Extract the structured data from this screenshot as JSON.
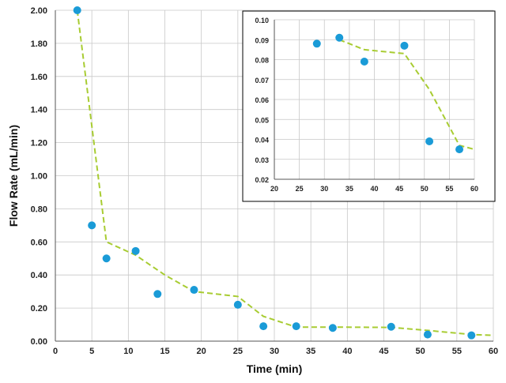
{
  "chart_data": [
    {
      "id": "main",
      "type": "scatter",
      "title": "",
      "xlabel": "Time (min)",
      "ylabel": "Flow Rate (mL/min)",
      "xlim": [
        0,
        60
      ],
      "ylim": [
        0,
        2.0
      ],
      "x_ticks": [
        "0",
        "5",
        "10",
        "15",
        "20",
        "25",
        "30",
        "35",
        "40",
        "45",
        "50",
        "55",
        "60"
      ],
      "y_ticks": [
        "0.00",
        "0.20",
        "0.40",
        "0.60",
        "0.80",
        "1.00",
        "1.20",
        "1.40",
        "1.60",
        "1.80",
        "2.00"
      ],
      "grid": true,
      "legend": "none",
      "points": [
        {
          "x": 3,
          "y": 2.0
        },
        {
          "x": 5,
          "y": 0.7
        },
        {
          "x": 7,
          "y": 0.5
        },
        {
          "x": 11,
          "y": 0.545
        },
        {
          "x": 14,
          "y": 0.285
        },
        {
          "x": 19,
          "y": 0.31
        },
        {
          "x": 25,
          "y": 0.22
        },
        {
          "x": 28.5,
          "y": 0.09
        },
        {
          "x": 33,
          "y": 0.09
        },
        {
          "x": 38,
          "y": 0.08
        },
        {
          "x": 46,
          "y": 0.087
        },
        {
          "x": 51,
          "y": 0.04
        },
        {
          "x": 57,
          "y": 0.035
        }
      ],
      "trend_line": [
        {
          "x": 3,
          "y": 2.0
        },
        {
          "x": 7,
          "y": 0.6
        },
        {
          "x": 11,
          "y": 0.52
        },
        {
          "x": 15,
          "y": 0.4
        },
        {
          "x": 19,
          "y": 0.3
        },
        {
          "x": 25,
          "y": 0.27
        },
        {
          "x": 28.5,
          "y": 0.15
        },
        {
          "x": 33,
          "y": 0.085
        },
        {
          "x": 38,
          "y": 0.085
        },
        {
          "x": 46,
          "y": 0.083
        },
        {
          "x": 51,
          "y": 0.065
        },
        {
          "x": 57,
          "y": 0.04
        },
        {
          "x": 60,
          "y": 0.035
        }
      ],
      "marker_color": "#1a9bd7",
      "line_color": "#a8cc32"
    },
    {
      "id": "inset",
      "type": "scatter",
      "title": "",
      "xlabel": "",
      "ylabel": "",
      "xlim": [
        20,
        60
      ],
      "ylim": [
        0.02,
        0.1
      ],
      "x_ticks": [
        "20",
        "25",
        "30",
        "35",
        "40",
        "45",
        "50",
        "55",
        "60"
      ],
      "y_ticks": [
        "0.02",
        "0.03",
        "0.04",
        "0.05",
        "0.06",
        "0.07",
        "0.08",
        "0.09",
        "0.10"
      ],
      "grid": true,
      "legend": "none",
      "points": [
        {
          "x": 28.5,
          "y": 0.088
        },
        {
          "x": 33,
          "y": 0.091
        },
        {
          "x": 38,
          "y": 0.079
        },
        {
          "x": 46,
          "y": 0.087
        },
        {
          "x": 51,
          "y": 0.039
        },
        {
          "x": 57,
          "y": 0.035
        }
      ],
      "trend_line": [
        {
          "x": 33,
          "y": 0.09
        },
        {
          "x": 38,
          "y": 0.085
        },
        {
          "x": 46,
          "y": 0.083
        },
        {
          "x": 51,
          "y": 0.065
        },
        {
          "x": 57,
          "y": 0.037
        },
        {
          "x": 60,
          "y": 0.035
        }
      ],
      "marker_color": "#1a9bd7",
      "line_color": "#a8cc32"
    }
  ]
}
